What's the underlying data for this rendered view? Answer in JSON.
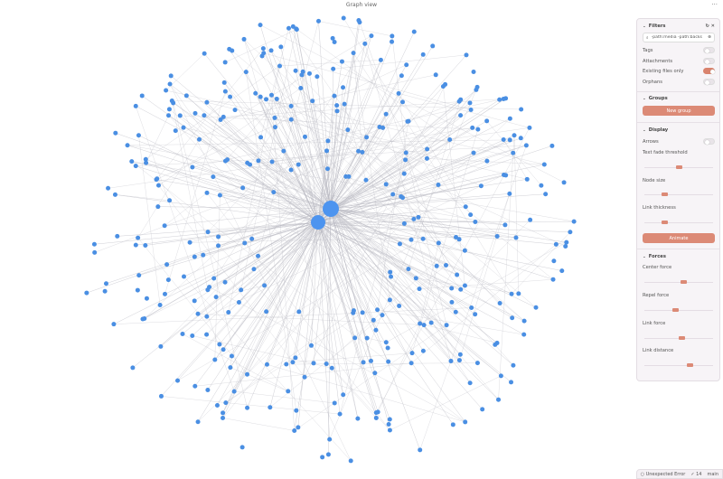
{
  "window": {
    "title": "Graph view",
    "more_icon": "ellipsis-icon"
  },
  "colors": {
    "node": "#4a8fe3",
    "edge": "#b9b9c2",
    "accent": "#dc8a76",
    "hub": "#4d94ef"
  },
  "filters": {
    "header": "Filters",
    "search_value": "-path:media -path:backs",
    "toggles": [
      {
        "label": "Tags",
        "on": false
      },
      {
        "label": "Attachments",
        "on": false
      },
      {
        "label": "Existing files only",
        "on": true
      },
      {
        "label": "Orphans",
        "on": false
      }
    ]
  },
  "groups": {
    "header": "Groups",
    "new_group": "New group"
  },
  "display": {
    "header": "Display",
    "arrows": {
      "label": "Arrows",
      "on": false
    },
    "text_fade": {
      "label": "Text fade threshold",
      "value": 0.5
    },
    "node_size": {
      "label": "Node size",
      "value": 0.3
    },
    "link_thickness": {
      "label": "Link thickness",
      "value": 0.3
    },
    "animate": "Animate"
  },
  "forces": {
    "header": "Forces",
    "center": {
      "label": "Center force",
      "value": 0.57
    },
    "repel": {
      "label": "Repel force",
      "value": 0.45
    },
    "link": {
      "label": "Link force",
      "value": 0.54
    },
    "distance": {
      "label": "Link distance",
      "value": 0.66
    }
  },
  "status": {
    "error": "Unexpected Error",
    "check": "✓ 14",
    "branch": "main"
  }
}
